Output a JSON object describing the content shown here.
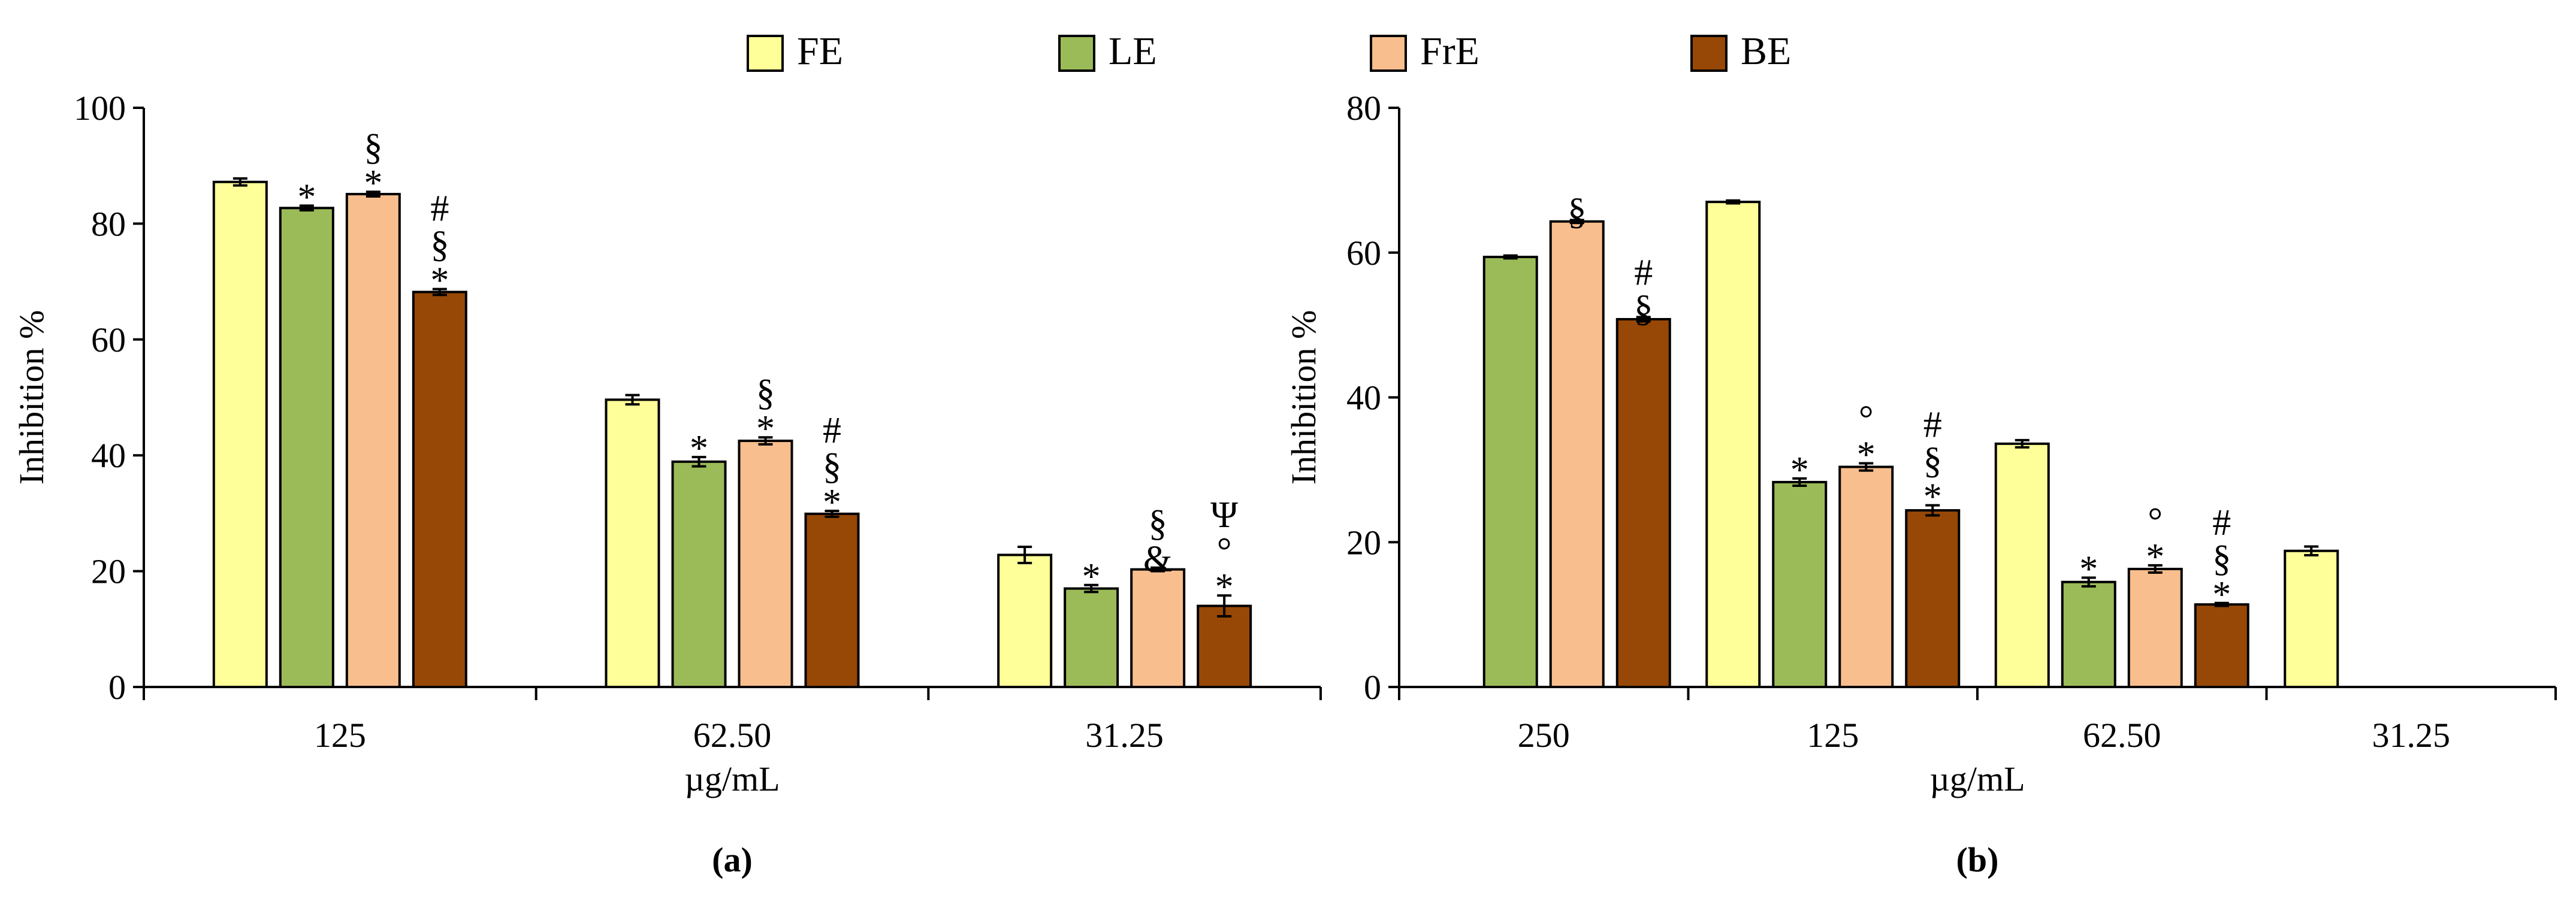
{
  "legend": [
    {
      "label": "FE",
      "color": "#FFFF99"
    },
    {
      "label": "LE",
      "color": "#9BBB59"
    },
    {
      "label": "FrE",
      "color": "#F9BE8E"
    },
    {
      "label": "BE",
      "color": "#974806"
    }
  ],
  "chart_data": [
    {
      "type": "bar",
      "panel_label": "(a)",
      "xlabel": "µg/mL",
      "ylabel": "Inhibition %",
      "ylim": [
        0,
        100
      ],
      "yticks": [
        0,
        20,
        40,
        60,
        80,
        100
      ],
      "categories": [
        "125",
        "62.50",
        "31.25"
      ],
      "series": [
        {
          "name": "FE",
          "values": [
            87.2,
            49.6,
            22.8
          ],
          "errors": [
            0.6,
            0.8,
            1.4
          ],
          "annotations": [
            "",
            "",
            ""
          ]
        },
        {
          "name": "LE",
          "values": [
            82.7,
            38.9,
            17.0
          ],
          "errors": [
            0.4,
            0.8,
            0.6
          ],
          "annotations": [
            "*",
            "*",
            "*"
          ]
        },
        {
          "name": "FrE",
          "values": [
            85.1,
            42.5,
            20.3
          ],
          "errors": [
            0.4,
            0.6,
            0.3
          ],
          "annotations": [
            "§\n*",
            "§\n*",
            "§\n&"
          ]
        },
        {
          "name": "BE",
          "values": [
            68.2,
            29.9,
            14.0
          ],
          "errors": [
            0.5,
            0.5,
            1.8
          ],
          "annotations": [
            "#\n§\n*",
            "#\n§\n*",
            "Ψ\n°\n*"
          ]
        }
      ]
    },
    {
      "type": "bar",
      "panel_label": "(b)",
      "xlabel": "µg/mL",
      "ylabel": "Inhibition %",
      "ylim": [
        0,
        80
      ],
      "yticks": [
        0,
        20,
        40,
        60,
        80
      ],
      "categories": [
        "250",
        "125",
        "62.50",
        "31.25"
      ],
      "series": [
        {
          "name": "FE",
          "values": [
            null,
            67.0,
            33.6,
            18.8
          ],
          "errors": [
            null,
            0.2,
            0.5,
            0.6
          ],
          "annotations": [
            "",
            "",
            "",
            ""
          ]
        },
        {
          "name": "LE",
          "values": [
            59.4,
            28.3,
            14.5,
            null
          ],
          "errors": [
            0.2,
            0.5,
            0.6,
            null
          ],
          "annotations": [
            "",
            "*",
            "*",
            ""
          ]
        },
        {
          "name": "FrE",
          "values": [
            64.3,
            30.4,
            16.3,
            null
          ],
          "errors": [
            0.2,
            0.5,
            0.5,
            null
          ],
          "annotations": [
            "§",
            "°\n*",
            "°\n*",
            ""
          ]
        },
        {
          "name": "BE",
          "values": [
            50.8,
            24.4,
            11.4,
            null
          ],
          "errors": [
            0.3,
            0.7,
            0.2,
            null
          ],
          "annotations": [
            "#\n§",
            "#\n§\n*",
            "#\n§\n*",
            ""
          ]
        }
      ]
    }
  ]
}
